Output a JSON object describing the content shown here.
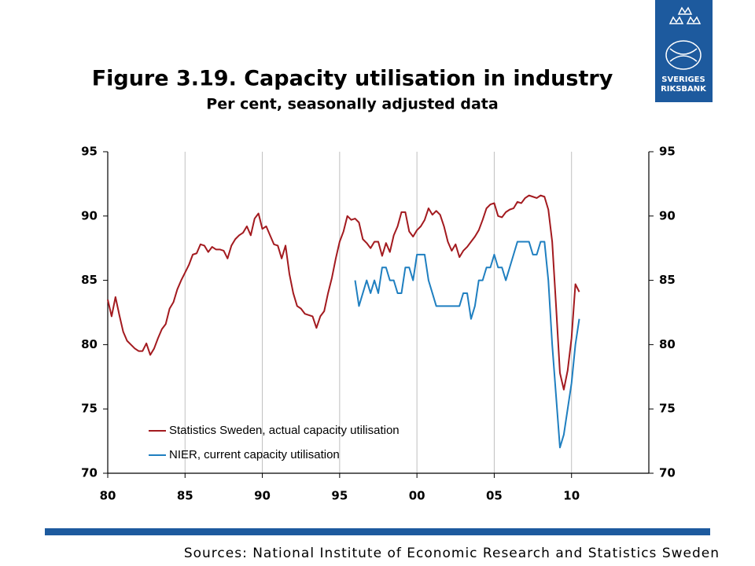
{
  "chart_data": {
    "type": "line",
    "title": "Figure 3.19. Capacity utilisation in industry",
    "subtitle": "Per cent, seasonally adjusted data",
    "source": "Sources: National Institute of Economic Research and Statistics Sweden",
    "logo_lines": [
      "SVERIGES",
      "RIKSBANK"
    ],
    "xlim": [
      1980,
      2015
    ],
    "xticks": [
      {
        "value": 1980,
        "label": "80"
      },
      {
        "value": 1985,
        "label": "85"
      },
      {
        "value": 1990,
        "label": "90"
      },
      {
        "value": 1995,
        "label": "95"
      },
      {
        "value": 2000,
        "label": "00"
      },
      {
        "value": 2005,
        "label": "05"
      },
      {
        "value": 2010,
        "label": "10"
      }
    ],
    "ylim": [
      70,
      95
    ],
    "yticks": [
      70,
      75,
      80,
      85,
      90,
      95
    ],
    "y2lim": [
      70,
      95
    ],
    "y2ticks": [
      70,
      75,
      80,
      85,
      90,
      95
    ],
    "grid": "x",
    "legend": "lower left",
    "series": [
      {
        "name": "Statistics Sweden, actual capacity utilisation",
        "color": "#a31a1f",
        "x": [
          1980,
          1980.25,
          1980.5,
          1980.75,
          1981,
          1981.25,
          1981.5,
          1981.75,
          1982,
          1982.25,
          1982.5,
          1982.75,
          1983,
          1983.25,
          1983.5,
          1983.75,
          1984,
          1984.25,
          1984.5,
          1984.75,
          1985,
          1985.25,
          1985.5,
          1985.75,
          1986,
          1986.25,
          1986.5,
          1986.75,
          1987,
          1987.25,
          1987.5,
          1987.75,
          1988,
          1988.25,
          1988.5,
          1988.75,
          1989,
          1989.25,
          1989.5,
          1989.75,
          1990,
          1990.25,
          1990.5,
          1990.75,
          1991,
          1991.25,
          1991.5,
          1991.75,
          1992,
          1992.25,
          1992.5,
          1992.75,
          1993,
          1993.25,
          1993.5,
          1993.75,
          1994,
          1994.25,
          1994.5,
          1994.75,
          1995,
          1995.25,
          1995.5,
          1995.75,
          1996,
          1996.25,
          1996.5,
          1996.75,
          1997,
          1997.25,
          1997.5,
          1997.75,
          1998,
          1998.25,
          1998.5,
          1998.75,
          1999,
          1999.25,
          1999.5,
          1999.75,
          2000,
          2000.25,
          2000.5,
          2000.75,
          2001,
          2001.25,
          2001.5,
          2001.75,
          2002,
          2002.25,
          2002.5,
          2002.75,
          2003,
          2003.25,
          2003.5,
          2003.75,
          2004,
          2004.25,
          2004.5,
          2004.75,
          2005,
          2005.25,
          2005.5,
          2005.75,
          2006,
          2006.25,
          2006.5,
          2006.75,
          2007,
          2007.25,
          2007.5,
          2007.75,
          2008,
          2008.25,
          2008.5,
          2008.75,
          2009,
          2009.25,
          2009.5,
          2009.75,
          2010,
          2010.25,
          2010.5
        ],
        "values": [
          83.5,
          82.2,
          83.7,
          82.3,
          81.0,
          80.3,
          80.0,
          79.7,
          79.5,
          79.5,
          80.1,
          79.2,
          79.7,
          80.5,
          81.2,
          81.6,
          82.8,
          83.3,
          84.3,
          85.0,
          85.6,
          86.2,
          87.0,
          87.1,
          87.8,
          87.7,
          87.2,
          87.6,
          87.4,
          87.4,
          87.3,
          86.7,
          87.7,
          88.2,
          88.5,
          88.7,
          89.2,
          88.5,
          89.8,
          90.2,
          89.0,
          89.2,
          88.5,
          87.8,
          87.7,
          86.7,
          87.7,
          85.5,
          84.0,
          83.0,
          82.8,
          82.4,
          82.3,
          82.2,
          81.3,
          82.2,
          82.6,
          84.0,
          85.2,
          86.7,
          88.0,
          88.8,
          90.0,
          89.7,
          89.8,
          89.5,
          88.2,
          87.9,
          87.5,
          88.0,
          88.0,
          86.9,
          87.9,
          87.2,
          88.5,
          89.2,
          90.3,
          90.3,
          88.8,
          88.4,
          88.9,
          89.2,
          89.7,
          90.6,
          90.1,
          90.4,
          90.1,
          89.2,
          88.0,
          87.3,
          87.8,
          86.8,
          87.3,
          87.6,
          88.0,
          88.4,
          88.9,
          89.7,
          90.6,
          90.9,
          91.0,
          90.0,
          89.9,
          90.3,
          90.5,
          90.6,
          91.1,
          91.0,
          91.4,
          91.6,
          91.5,
          91.4,
          91.6,
          91.5,
          90.5,
          88.0,
          83.0,
          77.8,
          76.5,
          78.0,
          80.5,
          84.7,
          84.1
        ]
      },
      {
        "name": "NIER, current capacity utilisation",
        "color": "#1f7fc0",
        "x": [
          1996,
          1996.25,
          1996.5,
          1996.75,
          1997,
          1997.25,
          1997.5,
          1997.75,
          1998,
          1998.25,
          1998.5,
          1998.75,
          1999,
          1999.25,
          1999.5,
          1999.75,
          2000,
          2000.25,
          2000.5,
          2000.75,
          2001,
          2001.25,
          2001.5,
          2001.75,
          2002,
          2002.25,
          2002.5,
          2002.75,
          2003,
          2003.25,
          2003.5,
          2003.75,
          2004,
          2004.25,
          2004.5,
          2004.75,
          2005,
          2005.25,
          2005.5,
          2005.75,
          2006,
          2006.25,
          2006.5,
          2006.75,
          2007,
          2007.25,
          2007.5,
          2007.75,
          2008,
          2008.25,
          2008.5,
          2008.75,
          2009,
          2009.25,
          2009.5,
          2009.75,
          2010,
          2010.25,
          2010.5
        ],
        "values": [
          85,
          83,
          84,
          85,
          84,
          85,
          84,
          86,
          86,
          85,
          85,
          84,
          84,
          86,
          86,
          85,
          87,
          87,
          87,
          85,
          84,
          83,
          83,
          83,
          83,
          83,
          83,
          83,
          84,
          84,
          82,
          83,
          85,
          85,
          86,
          86,
          87,
          86,
          86,
          85,
          86,
          87,
          88,
          88,
          88,
          88,
          87,
          87,
          88,
          88,
          85,
          80,
          76,
          72,
          73,
          75,
          77,
          80,
          82
        ]
      }
    ]
  }
}
